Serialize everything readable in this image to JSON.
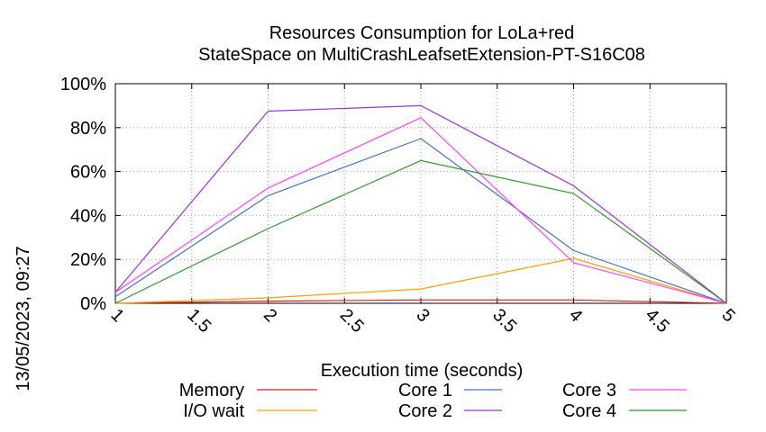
{
  "chart_data": {
    "type": "line",
    "title": [
      "Resources Consumption for LoLa+red",
      "StateSpace on MultiCrashLeafsetExtension-PT-S16C08"
    ],
    "xlabel": "Execution time (seconds)",
    "ylabel": "",
    "timestamp": "13/05/2023, 09:27",
    "xlim": [
      1,
      5
    ],
    "ylim": [
      0,
      100
    ],
    "x_ticks": [
      "1",
      "1.5",
      "2",
      "2.5",
      "3",
      "3.5",
      "4",
      "4.5",
      "5"
    ],
    "y_ticks": [
      "0%",
      "20%",
      "40%",
      "60%",
      "80%",
      "100%"
    ],
    "grid": true,
    "legend_position": "bottom",
    "x": [
      1,
      2,
      3,
      4,
      5
    ],
    "series": [
      {
        "name": "Memory",
        "color": "#e41a1c",
        "values": [
          0,
          1,
          1.5,
          1.5,
          0
        ]
      },
      {
        "name": "I/O wait",
        "color": "#ff9f00",
        "values": [
          0,
          2.5,
          6.5,
          20.5,
          0
        ]
      },
      {
        "name": "Core 1",
        "color": "#4472c4",
        "values": [
          3,
          49,
          75,
          24,
          0
        ]
      },
      {
        "name": "Core 2",
        "color": "#9933dd",
        "values": [
          5,
          87.5,
          90,
          53.5,
          0
        ]
      },
      {
        "name": "Core 3",
        "color": "#ff44ff",
        "values": [
          5,
          52.5,
          84.5,
          18.5,
          0
        ]
      },
      {
        "name": "Core 4",
        "color": "#339933",
        "values": [
          0,
          34,
          65,
          50,
          0
        ]
      }
    ]
  }
}
